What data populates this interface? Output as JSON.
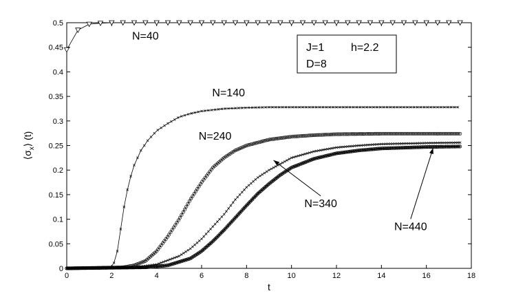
{
  "chart_data": {
    "type": "line",
    "xlabel": "t",
    "ylabel": "⟨σ",
    "ylabel_sub": "x",
    "ylabel_suffix": "⟩ (t)",
    "xlim": [
      0,
      18
    ],
    "ylim": [
      0,
      0.5
    ],
    "xticks": [
      "0",
      "2",
      "4",
      "6",
      "8",
      "10",
      "12",
      "14",
      "16",
      "18"
    ],
    "yticks": [
      "0",
      "0.05",
      "0.1",
      "0.15",
      "0.2",
      "0.25",
      "0.3",
      "0.35",
      "0.4",
      "0.45",
      "0.5"
    ],
    "grid": false,
    "legend_box": {
      "line1_a": "J=1",
      "line1_b": "h=2.2",
      "line2": "D=8"
    },
    "series": [
      {
        "name": "N=40",
        "marker": "triangle-down",
        "t0": 0,
        "dt": 0.5,
        "t_end": 17.5,
        "x": [
          0,
          0.25,
          0.5,
          0.75,
          1.0,
          1.5,
          2.0,
          3.0,
          17.5
        ],
        "values": [
          0.445,
          0.465,
          0.485,
          0.494,
          0.497,
          0.499,
          0.5,
          0.5,
          0.5
        ]
      },
      {
        "name": "N=140",
        "marker": "x",
        "x": [
          0,
          2.0,
          2.2,
          2.4,
          2.6,
          2.8,
          3.0,
          3.3,
          3.6,
          4.0,
          4.5,
          5.0,
          5.5,
          6.0,
          7.0,
          8.0,
          9.0,
          10.0,
          12.0,
          14.0,
          17.5
        ],
        "values": [
          0,
          0.002,
          0.02,
          0.08,
          0.14,
          0.18,
          0.21,
          0.24,
          0.26,
          0.28,
          0.295,
          0.308,
          0.315,
          0.32,
          0.325,
          0.327,
          0.328,
          0.328,
          0.328,
          0.328,
          0.328
        ]
      },
      {
        "name": "N=240",
        "marker": "circle",
        "x": [
          0,
          2.5,
          3.0,
          3.5,
          4.0,
          4.5,
          5.0,
          5.5,
          6.0,
          6.5,
          7.0,
          7.5,
          8.0,
          9.0,
          10.0,
          11.0,
          12.0,
          14.0,
          17.5
        ],
        "values": [
          0,
          0.002,
          0.006,
          0.015,
          0.035,
          0.065,
          0.1,
          0.14,
          0.175,
          0.205,
          0.225,
          0.24,
          0.25,
          0.262,
          0.268,
          0.271,
          0.273,
          0.274,
          0.274
        ]
      },
      {
        "name": "N=340",
        "marker": "x",
        "x": [
          0,
          3.0,
          4.0,
          5.0,
          5.5,
          6.0,
          6.5,
          7.0,
          7.5,
          8.0,
          8.5,
          9.0,
          10.0,
          11.0,
          12.0,
          13.0,
          14.0,
          16.0,
          17.5
        ],
        "values": [
          0,
          0.002,
          0.008,
          0.025,
          0.04,
          0.06,
          0.085,
          0.11,
          0.14,
          0.165,
          0.185,
          0.2,
          0.225,
          0.238,
          0.246,
          0.25,
          0.253,
          0.255,
          0.256
        ]
      },
      {
        "name": "N=440",
        "marker": "circle",
        "x": [
          0,
          3.5,
          4.5,
          5.5,
          6.0,
          6.5,
          7.0,
          7.5,
          8.0,
          8.5,
          9.0,
          9.5,
          10.0,
          11.0,
          12.0,
          13.0,
          14.0,
          16.0,
          17.5
        ],
        "values": [
          0,
          0.002,
          0.006,
          0.02,
          0.035,
          0.055,
          0.078,
          0.103,
          0.128,
          0.152,
          0.172,
          0.19,
          0.205,
          0.223,
          0.234,
          0.24,
          0.244,
          0.247,
          0.248
        ]
      }
    ],
    "annotations": [
      {
        "text": "N=40",
        "x": 3.5,
        "y": 0.466
      },
      {
        "text": "N=140",
        "x": 7.2,
        "y": 0.35
      },
      {
        "text": "N=240",
        "x": 6.6,
        "y": 0.262
      },
      {
        "text": "N=340",
        "x": 11.3,
        "y": 0.125,
        "arrow_to": [
          9.2,
          0.22
        ]
      },
      {
        "text": "N=440",
        "x": 15.3,
        "y": 0.078,
        "arrow_to": [
          16.3,
          0.245
        ]
      }
    ]
  }
}
